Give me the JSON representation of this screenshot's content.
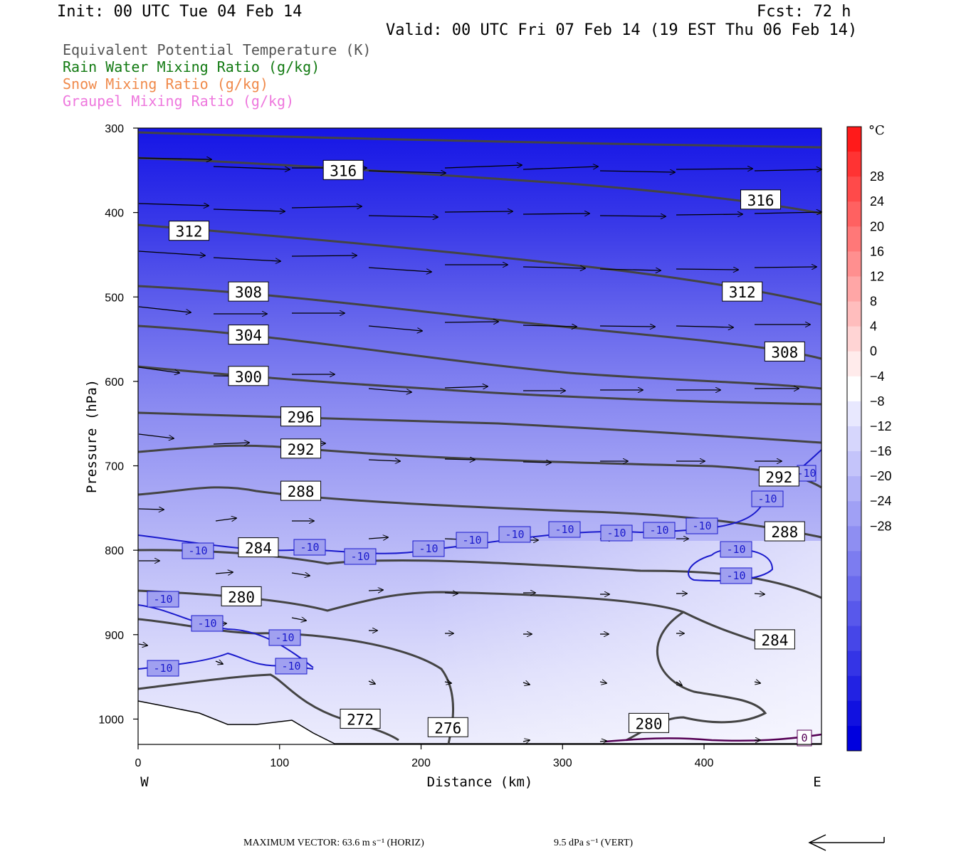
{
  "header": {
    "init": "Init: 00 UTC Tue 04 Feb 14",
    "fcst": "Fcst:   72 h",
    "valid": "Valid: 00 UTC Fri 07 Feb 14 (19 EST Thu 06 Feb 14)"
  },
  "legend": [
    {
      "label": "Equivalent Potential Temperature (K)",
      "color": "#555555"
    },
    {
      "label": "Rain Water Mixing Ratio (g/kg)",
      "color": "#127a12"
    },
    {
      "label": "Snow Mixing Ratio (g/kg)",
      "color": "#f08a4b"
    },
    {
      "label": "Graupel Mixing Ratio (g/kg)",
      "color": "#ee77dd"
    }
  ],
  "footer": {
    "max_vector_horiz": "MAXIMUM VECTOR:  63.6 m s⁻¹ (HORIZ)",
    "max_vector_vert": "9.5 dPa s⁻¹ (VERT)"
  },
  "chart_data": {
    "type": "contour",
    "x_axis": {
      "label": "Distance (km)",
      "range": [
        0,
        483
      ],
      "ticks": [
        0,
        100,
        200,
        300,
        400
      ],
      "left_end": "W",
      "right_end": "E"
    },
    "y_axis": {
      "label": "Pressure (hPa)",
      "range": [
        300,
        1030
      ],
      "ticks": [
        300,
        400,
        500,
        600,
        700,
        800,
        900,
        1000
      ],
      "inverted": true
    },
    "colorbar": {
      "unit": "°C",
      "tick_labels": [
        28,
        24,
        20,
        16,
        12,
        8,
        4,
        0,
        -4,
        -8,
        -12,
        -16,
        -20,
        -24,
        -28
      ],
      "colors_top_to_bottom": [
        "#ff1a1a",
        "#ff3333",
        "#ff4a4a",
        "#ff6161",
        "#ff7878",
        "#ff8f8f",
        "#ffa6a6",
        "#ffbdbd",
        "#ffd4d4",
        "#ffebeb",
        "#ffffff",
        "#e8e8fe",
        "#d6d6fc",
        "#c4c4fa",
        "#b2b2f7",
        "#a0a0f5",
        "#8e8ef2",
        "#7c7cf0",
        "#6a6aed",
        "#5858eb",
        "#4646e8",
        "#3434e6",
        "#2222e3",
        "#1111e0",
        "#0000de"
      ]
    },
    "theta_e_contours": [
      {
        "value": 316,
        "labels": [
          [
            145,
            350
          ],
          [
            440,
            385
          ]
        ]
      },
      {
        "value": 312,
        "labels": [
          [
            36,
            422
          ],
          [
            427,
            494
          ]
        ]
      },
      {
        "value": 308,
        "labels": [
          [
            78,
            494
          ],
          [
            457,
            565
          ]
        ]
      },
      {
        "value": 304,
        "labels": [
          [
            78,
            545
          ]
        ]
      },
      {
        "value": 300,
        "labels": [
          [
            78,
            594
          ]
        ]
      },
      {
        "value": 296,
        "labels": [
          [
            115,
            642
          ]
        ]
      },
      {
        "value": 292,
        "labels": [
          [
            115,
            680
          ],
          [
            453,
            713
          ]
        ]
      },
      {
        "value": 288,
        "labels": [
          [
            115,
            730
          ],
          [
            457,
            778
          ]
        ]
      },
      {
        "value": 284,
        "labels": [
          [
            85,
            797
          ],
          [
            450,
            906
          ]
        ]
      },
      {
        "value": 280,
        "labels": [
          [
            73,
            855
          ],
          [
            361,
            1005
          ]
        ]
      },
      {
        "value": 276,
        "labels": [
          [
            219,
            1010
          ]
        ]
      },
      {
        "value": 272,
        "labels": [
          [
            157,
            1000
          ]
        ]
      }
    ],
    "temperature_contour_labels": [
      "-10",
      "0"
    ],
    "vector_max": {
      "horizontal": "63.6 m s-1",
      "vertical": "9.5 dPa s-1"
    }
  }
}
